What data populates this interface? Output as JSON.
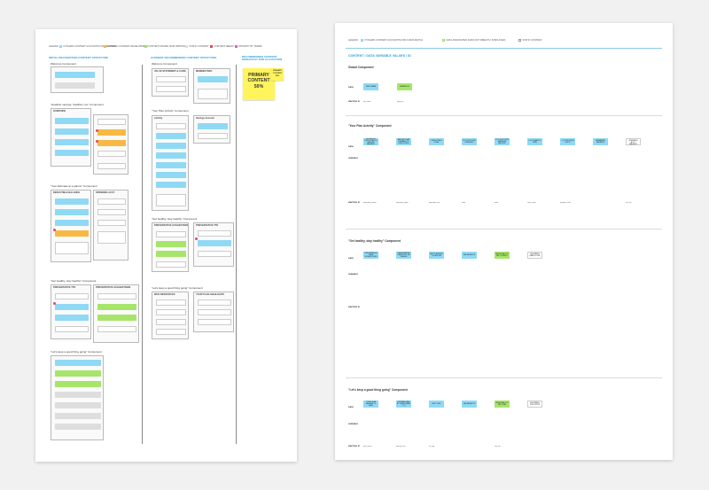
{
  "left": {
    "legend": [
      {
        "label": "LEGEND",
        "color": ""
      },
      {
        "label": "DYNAMIC CONTENT ACCOUNTS FOR HEADING",
        "color": "#8fd9f5"
      },
      {
        "label": "DYNAMIC CONTENT DEVELOPMENT",
        "color": "#f7b944"
      },
      {
        "label": "CONTENT MOVED (FOR WRITING)",
        "color": "#a6e56a"
      },
      {
        "label": "STATIC CONTENT",
        "color": "#dedede"
      },
      {
        "label": "CONTENT NEEDS",
        "color": "#e5475d"
      },
      {
        "label": "PRIORITY BY TERMS",
        "color": "#e55fb5"
      }
    ],
    "col_titles": [
      "INITIAL RECOGNITION CONTENT STRUCTURE",
      "CURRENT RECOMMENDED CONTENT STRUCTURE",
      "RECOMMENDED CONTENT HIERARCHY AND ALLOCATION"
    ],
    "sections_col1": [
      "Welcome Component",
      "\"Heathier savings, healthier you\" Component",
      "\"Your Estimate at a glance\" Component",
      "\"Get healthy, stay healthy\" Component",
      "\"Let's keep a good thing going\" Component"
    ],
    "sections_col2": [
      "Welcome Component",
      "\"Your Plan Activity\" Component",
      "\"Get healthy, stay healthy\" Component",
      "\"Let's keep a good thing going\" Component"
    ],
    "frame_titles": [
      "OVERVIEW",
      "DEDUCTIBLE BALANCE",
      "SPENDING ACCT",
      "PREVENTATIVE TTD",
      "PREVENTATIVE SUGGESTIONS",
      "VALUE STATEMENT & CARD",
      "MEMBER INFO",
      "Activity",
      "Savings Account",
      "PREVENTATIVE SUGGESTIONS",
      "PREVENTATIVE TTD",
      "WHO RESOURCES",
      "YOUR PLAN HIGHLIGHTS"
    ],
    "sticky_main": [
      "PRIMARY",
      "CONTENT",
      "50%"
    ],
    "sticky_small": [
      "PRIMARY",
      "CONTENT",
      "25%"
    ]
  },
  "right": {
    "legend": [
      {
        "label": "LEGEND",
        "color": ""
      },
      {
        "label": "DYNAMIC CONTENT ACCOUNTS FOR A DATA MATCH",
        "color": "#8fd9f5"
      },
      {
        "label": "DATA ASSOCIATED (DATA NOT DIRECTLY DISPLAYED)",
        "color": "#a6e56a"
      },
      {
        "label": "STATIC CONTENT",
        "color": "#ffffff"
      }
    ],
    "title": "CONTENT / DATA VARIABLE VALUES / ID",
    "sections": [
      "Global Component",
      "\"Your Plan Activity\" Component",
      "\"Get healthy, stay healthy\" Component",
      "\"Let's keep a good thing going\" Component"
    ],
    "row_labels": [
      "DATA",
      "VARIABLE",
      "MAPPING ID"
    ],
    "global_chips": [
      "FIRST NAME",
      "MEMBER ID"
    ],
    "global_map": [
      "first_name",
      "group_id"
    ],
    "activity_chips": [
      "REMAINING DEDUCTIBLE & EARLIER BALANCE",
      "AMOUNT THAT REMAINS TO DEDUCTIBLE",
      "DEDUCTIBLE TOTAL",
      "OUT OF POCKET SPENDING",
      "OUT OF POCKET MAXIMUM AMOUNT",
      "# OF CLAIMS TO DATE",
      "# OF PROVIDER VISITS",
      "REMAINING BALANCE",
      "SELECTED SPENDING ACCT BALANCE"
    ],
    "activity_map": [
      "deductible_remain",
      "deductible_spent",
      "deductible_amt",
      "ootm",
      "ootm",
      "claim_count",
      "provider_count",
      "",
      "hsa_bal"
    ],
    "healthy_chips": [
      "PREVENTATIVE CARE SUGGESTIONS",
      "PREVENTATIVE CARE FOR LIFE STAGES",
      "NEXT PREVENT. LOCATIONS",
      "SEE BENEFITS",
      "INDIVIDUAL CO-PAY CONTACT",
      "DELETABLE HEALTH LINK"
    ],
    "good_chips": [
      "TOTAL PLAN SAVINGS TO DATE",
      "ESTIMATE PAID BY SUBSCRIBER (*%)",
      "NEXT LINK",
      "SEE BENEFITS",
      "INDIVIDUAL CO-PAY PLAN",
      "DELETABLE DISCOUNTS"
    ],
    "good_map": [
      "total_saved",
      "paid_by_sub",
      "no_flag",
      "",
      "info_link",
      ""
    ]
  }
}
